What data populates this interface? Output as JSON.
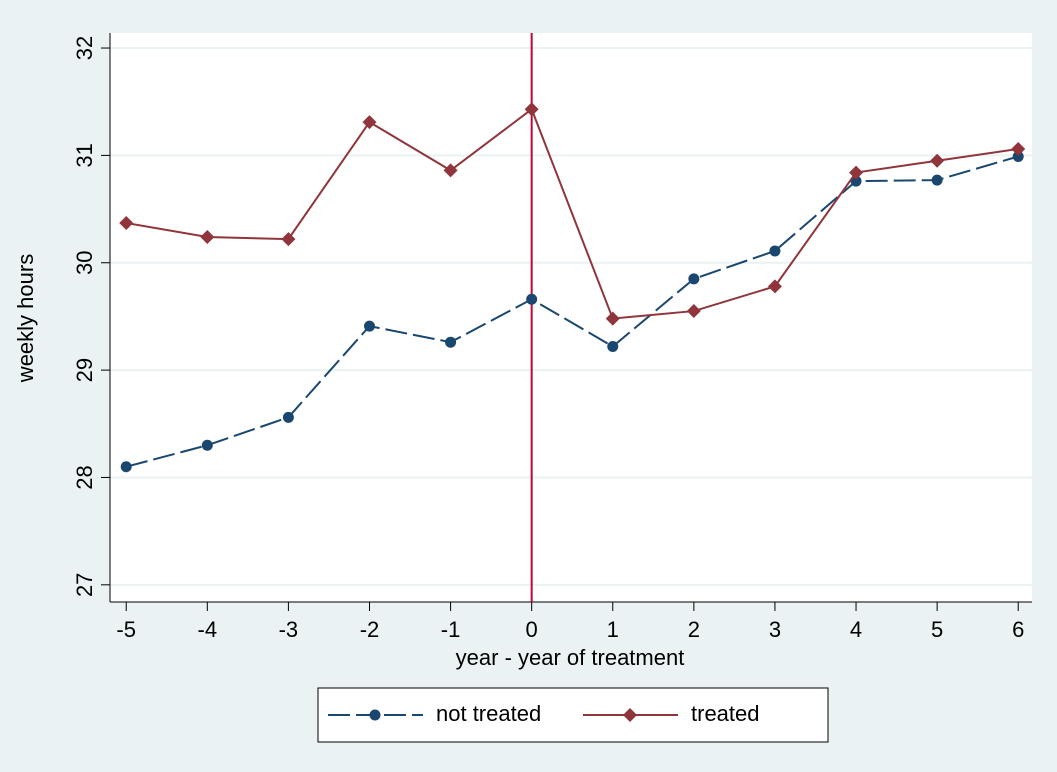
{
  "chart_data": {
    "type": "line",
    "x_label": "year - year of treatment",
    "y_label": "weekly hours",
    "x": [
      -5,
      -4,
      -3,
      -2,
      -1,
      0,
      1,
      2,
      3,
      4,
      5,
      6
    ],
    "series": [
      {
        "name": "not treated",
        "color": "#1a476f",
        "style": "dashed",
        "marker": "circle",
        "values": [
          28.1,
          28.3,
          28.56,
          29.41,
          29.26,
          29.66,
          29.22,
          29.85,
          30.11,
          30.76,
          30.77,
          30.99
        ]
      },
      {
        "name": "treated",
        "color": "#90353b",
        "style": "solid",
        "marker": "diamond",
        "values": [
          30.37,
          30.24,
          30.22,
          31.31,
          30.86,
          31.43,
          29.48,
          29.55,
          29.78,
          30.84,
          30.95,
          31.06
        ]
      }
    ],
    "xlim": [
      -5.2,
      6.17
    ],
    "xticks": [
      -5,
      -4,
      -3,
      -2,
      -1,
      0,
      1,
      2,
      3,
      4,
      5,
      6
    ],
    "ylim": [
      26.84,
      32.14
    ],
    "yticks": [
      27,
      28,
      29,
      30,
      31,
      32
    ],
    "xline": 0,
    "xline_color": "#c10534",
    "grid": true,
    "legend": "bottom"
  }
}
